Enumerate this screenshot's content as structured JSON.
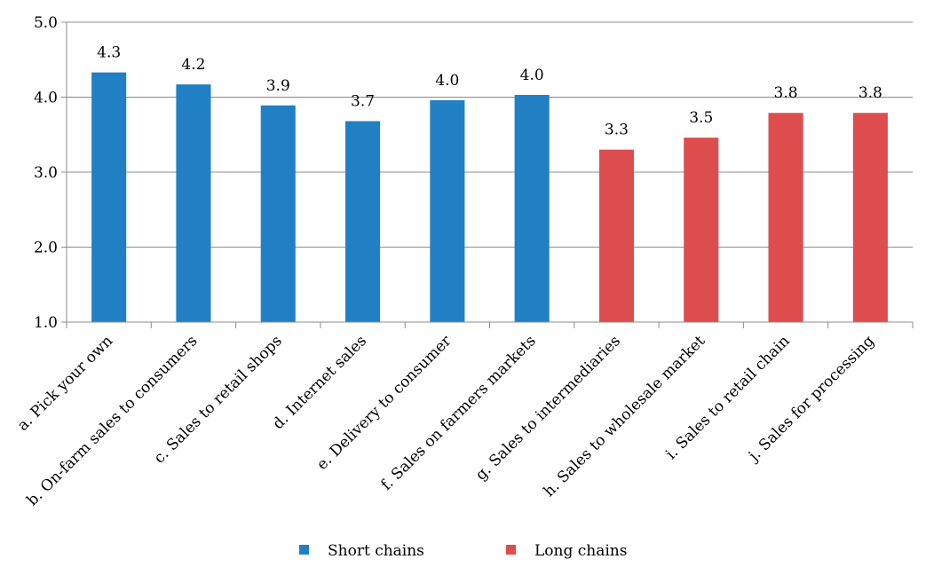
{
  "chart_data": {
    "type": "bar",
    "categories": [
      "a. Pick your own",
      "b. On-farm sales to consumers",
      "c. Sales to retail shops",
      "d. Internet sales",
      "e. Delivery to consumer",
      "f. Sales on farmers markets",
      "g. Sales  to intermediaries",
      "h. Sales to wholesale market",
      "i. Sales to retail chain",
      "j. Sales for processing"
    ],
    "values": [
      4.33,
      4.17,
      3.89,
      3.68,
      3.96,
      4.03,
      3.3,
      3.46,
      3.79,
      3.79
    ],
    "data_labels": [
      "4.3",
      "4.2",
      "3.9",
      "3.7",
      "4.0",
      "4.0",
      "3.3",
      "3.5",
      "3.8",
      "3.8"
    ],
    "groups": [
      "Short chains",
      "Short chains",
      "Short chains",
      "Short chains",
      "Short chains",
      "Short chains",
      "Long chains",
      "Long chains",
      "Long chains",
      "Long chains"
    ],
    "series": [
      {
        "name": "Short chains",
        "color": "#2180C4"
      },
      {
        "name": "Long chains",
        "color": "#DE4D4D"
      }
    ],
    "yticks": [
      "1.0",
      "2.0",
      "3.0",
      "4.0",
      "5.0"
    ],
    "ylim": [
      1.0,
      5.0
    ],
    "grid": true,
    "legend_position": "bottom",
    "title": "",
    "xlabel": "",
    "ylabel": ""
  }
}
